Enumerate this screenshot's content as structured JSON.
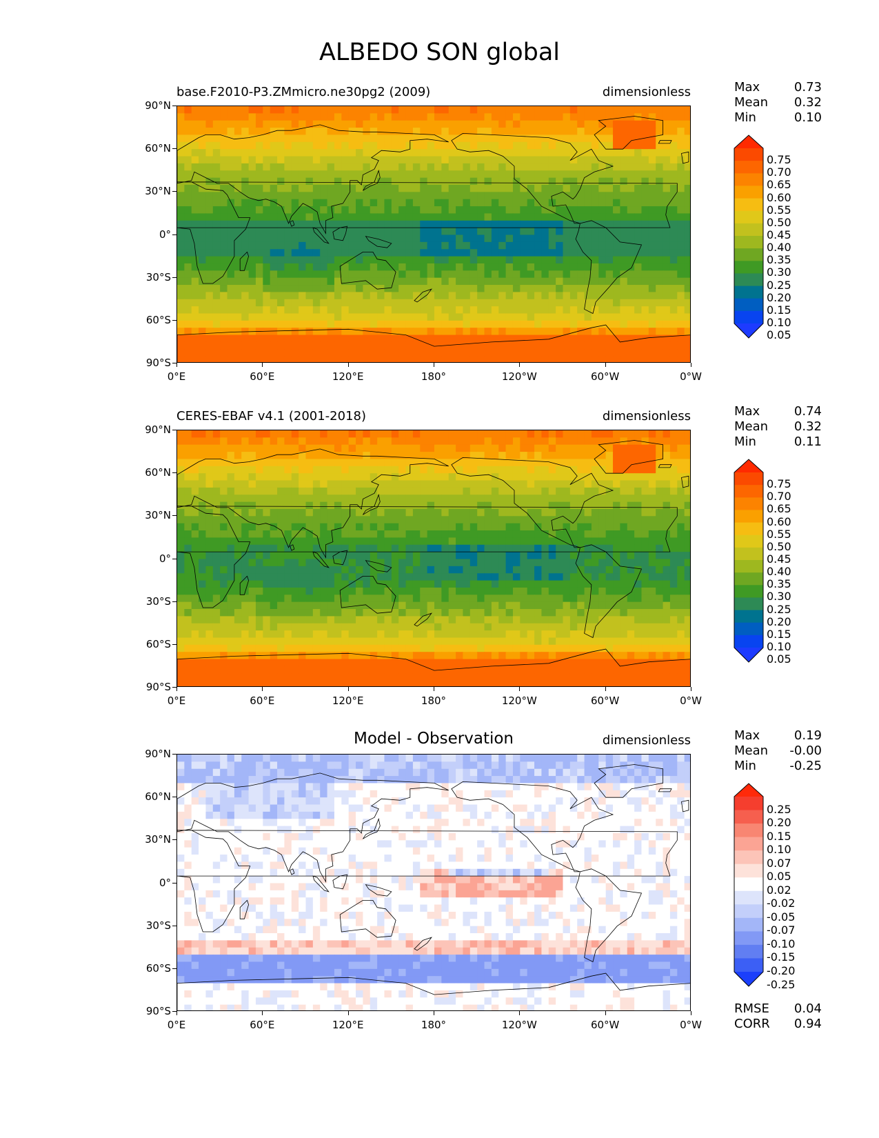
{
  "figure": {
    "title": "ALBEDO SON global"
  },
  "panels": [
    {
      "id": "model",
      "title_left": "base.F2010-P3.ZMmicro.ne30pg2 (2009)",
      "title_center": "",
      "units": "dimensionless",
      "stats": [
        {
          "name": "Max",
          "value": "0.73"
        },
        {
          "name": "Mean",
          "value": "0.32"
        },
        {
          "name": "Min",
          "value": "0.10"
        }
      ],
      "colorbar": {
        "labels": [
          "0.75",
          "0.70",
          "0.65",
          "0.60",
          "0.55",
          "0.50",
          "0.45",
          "0.40",
          "0.35",
          "0.30",
          "0.25",
          "0.20",
          "0.15",
          "0.10",
          "0.05"
        ],
        "colors": [
          "#ff2a00",
          "#fb4a00",
          "#fd6600",
          "#fc8300",
          "#faa000",
          "#f6bd12",
          "#e0c819",
          "#c2c11e",
          "#9eb81f",
          "#6fa722",
          "#3f9a24",
          "#2d8a55",
          "#00738f",
          "#005ec1",
          "#0844f0",
          "#1d3bff"
        ]
      },
      "field": "albedo"
    },
    {
      "id": "obs",
      "title_left": "CERES-EBAF v4.1 (2001-2018)",
      "title_center": "",
      "units": "dimensionless",
      "stats": [
        {
          "name": "Max",
          "value": "0.74"
        },
        {
          "name": "Mean",
          "value": "0.32"
        },
        {
          "name": "Min",
          "value": "0.11"
        }
      ],
      "colorbar": {
        "labels": [
          "0.75",
          "0.70",
          "0.65",
          "0.60",
          "0.55",
          "0.50",
          "0.45",
          "0.40",
          "0.35",
          "0.30",
          "0.25",
          "0.20",
          "0.15",
          "0.10",
          "0.05"
        ],
        "colors": [
          "#ff2a00",
          "#fb4a00",
          "#fd6600",
          "#fc8300",
          "#faa000",
          "#f6bd12",
          "#e0c819",
          "#c2c11e",
          "#9eb81f",
          "#6fa722",
          "#3f9a24",
          "#2d8a55",
          "#00738f",
          "#005ec1",
          "#0844f0",
          "#1d3bff"
        ]
      },
      "field": "albedo"
    },
    {
      "id": "diff",
      "title_left": "",
      "title_center": "Model - Observation",
      "units": "dimensionless",
      "stats": [
        {
          "name": "Max",
          "value": "0.19"
        },
        {
          "name": "Mean",
          "value": "-0.00"
        },
        {
          "name": "Min",
          "value": "-0.25"
        }
      ],
      "extra_stats": [
        {
          "name": "RMSE",
          "value": "0.04"
        },
        {
          "name": "CORR",
          "value": "0.94"
        }
      ],
      "colorbar": {
        "labels": [
          "0.25",
          "0.20",
          "0.15",
          "0.10",
          "0.07",
          "0.05",
          "0.02",
          "-0.02",
          "-0.05",
          "-0.07",
          "-0.10",
          "-0.15",
          "-0.20",
          "-0.25"
        ],
        "colors": [
          "#ff2a0a",
          "#f53e2e",
          "#f65f4e",
          "#f88672",
          "#fba494",
          "#fcc4b8",
          "#fde2da",
          "#ffffff",
          "#dde4fb",
          "#c3cffa",
          "#a3b6f8",
          "#8299f5",
          "#617ef2",
          "#3c5ff5",
          "#1b3ffb"
        ]
      },
      "field": "diff"
    }
  ],
  "axes": {
    "lat_labels": [
      "90°N",
      "60°N",
      "30°N",
      "0°",
      "30°S",
      "60°S",
      "90°S"
    ],
    "lon_labels": [
      "0°E",
      "60°E",
      "120°E",
      "180°",
      "120°W",
      "60°W",
      "0°W"
    ]
  }
}
